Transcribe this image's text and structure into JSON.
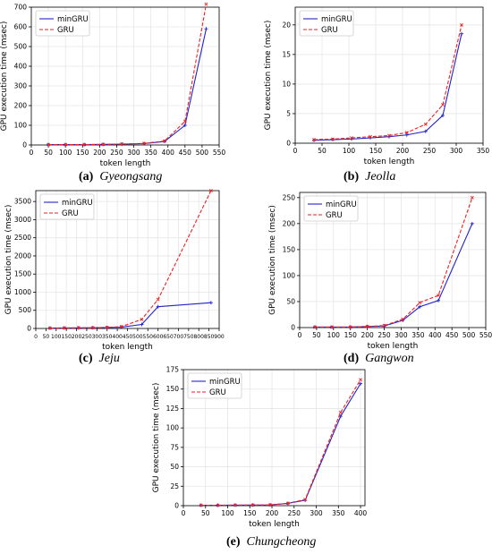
{
  "colors": {
    "mingru": "#2222cc",
    "gru": "#ee2222",
    "grid": "#e6e6e6"
  },
  "chart_data": [
    {
      "type": "line",
      "caption_letter": "(a)",
      "caption_name": "Gyeongsang",
      "xlabel": "token length",
      "ylabel": "GPU execution time (msec)",
      "xlim": [
        0,
        550
      ],
      "ylim": [
        0,
        700
      ],
      "xticks": [
        0,
        50,
        100,
        150,
        200,
        250,
        300,
        350,
        400,
        450,
        500,
        550
      ],
      "yticks": [
        0,
        100,
        200,
        300,
        400,
        500,
        600,
        700
      ],
      "grid": true,
      "legend_position": "upper-left",
      "x": [
        50,
        100,
        155,
        210,
        265,
        330,
        390,
        450,
        512
      ],
      "series": [
        {
          "name": "minGRU",
          "values": [
            2,
            2,
            2,
            3,
            4,
            7,
            18,
            100,
            590
          ]
        },
        {
          "name": "GRU",
          "values": [
            2,
            2,
            2,
            3,
            5,
            8,
            20,
            120,
            715
          ]
        }
      ]
    },
    {
      "type": "line",
      "caption_letter": "(b)",
      "caption_name": "Jeolla",
      "xlabel": "token length",
      "ylabel": "GPU execution time (msec)",
      "xlim": [
        0,
        350
      ],
      "ylim": [
        0,
        23
      ],
      "xticks": [
        0,
        50,
        100,
        150,
        200,
        250,
        300,
        350
      ],
      "yticks": [
        0,
        5,
        10,
        15,
        20
      ],
      "grid": true,
      "legend_position": "upper-left",
      "x": [
        35,
        70,
        105,
        140,
        175,
        208,
        243,
        275,
        310
      ],
      "series": [
        {
          "name": "minGRU",
          "values": [
            0.5,
            0.6,
            0.7,
            0.9,
            1.1,
            1.4,
            2.0,
            4.7,
            18.5
          ]
        },
        {
          "name": "GRU",
          "values": [
            0.6,
            0.7,
            0.9,
            1.1,
            1.3,
            1.8,
            3.2,
            6.5,
            20.0
          ]
        }
      ]
    },
    {
      "type": "line",
      "caption_letter": "(c)",
      "caption_name": "Jeju",
      "xlabel": "token length",
      "ylabel": "GPU execution time (msec)",
      "xlim": [
        0,
        900
      ],
      "ylim": [
        0,
        3800
      ],
      "xticks": [
        0,
        50,
        100,
        150,
        200,
        250,
        300,
        350,
        400,
        450,
        500,
        550,
        600,
        650,
        700,
        750,
        800,
        850,
        900
      ],
      "yticks": [
        0,
        500,
        1000,
        1500,
        2000,
        2500,
        3000,
        3500
      ],
      "grid": true,
      "legend_position": "upper-left",
      "x": [
        70,
        140,
        210,
        280,
        350,
        420,
        520,
        600,
        860
      ],
      "series": [
        {
          "name": "minGRU",
          "values": [
            10,
            15,
            15,
            20,
            25,
            35,
            110,
            600,
            710
          ]
        },
        {
          "name": "GRU",
          "values": [
            10,
            15,
            20,
            20,
            30,
            50,
            250,
            800,
            3800
          ]
        }
      ]
    },
    {
      "type": "line",
      "caption_letter": "(d)",
      "caption_name": "Gangwon",
      "xlabel": "token length",
      "ylabel": "GPU execution time (msec)",
      "xlim": [
        0,
        550
      ],
      "ylim": [
        0,
        260
      ],
      "xticks": [
        0,
        50,
        100,
        150,
        200,
        250,
        300,
        350,
        400,
        450,
        500,
        550
      ],
      "yticks": [
        0,
        50,
        100,
        150,
        200,
        250
      ],
      "grid": true,
      "legend_position": "upper-left",
      "x": [
        45,
        95,
        150,
        200,
        250,
        305,
        355,
        410,
        510
      ],
      "series": [
        {
          "name": "minGRU",
          "values": [
            1,
            1,
            1,
            2,
            3,
            14,
            40,
            52,
            200
          ]
        },
        {
          "name": "GRU",
          "values": [
            1,
            1,
            1,
            2,
            4,
            16,
            48,
            62,
            250
          ]
        }
      ]
    },
    {
      "type": "line",
      "caption_letter": "(e)",
      "caption_name": "Chungcheong",
      "xlabel": "token length",
      "ylabel": "GPU execution time (msec)",
      "xlim": [
        0,
        410
      ],
      "ylim": [
        0,
        175
      ],
      "xticks": [
        0,
        50,
        100,
        150,
        200,
        250,
        300,
        350,
        400
      ],
      "yticks": [
        0,
        25,
        50,
        75,
        100,
        125,
        150,
        175
      ],
      "grid": true,
      "legend_position": "upper-left",
      "x": [
        40,
        78,
        117,
        157,
        196,
        236,
        275,
        355,
        400
      ],
      "series": [
        {
          "name": "minGRU",
          "values": [
            0.5,
            0.5,
            0.7,
            0.8,
            1.0,
            3,
            7,
            115,
            157
          ]
        },
        {
          "name": "GRU",
          "values": [
            0.5,
            0.5,
            0.7,
            0.8,
            1.0,
            3,
            8,
            120,
            162
          ]
        }
      ]
    }
  ]
}
